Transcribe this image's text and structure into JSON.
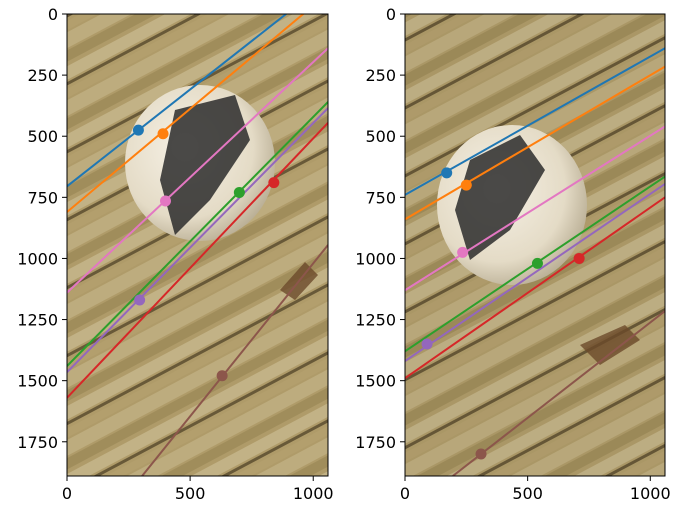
{
  "chart_data": [
    {
      "type": "scatter",
      "panel": "left",
      "background": "photograph of a soccer ball resting on wooden deck boards",
      "xlim": [
        0,
        1060
      ],
      "ylim": [
        1890,
        0
      ],
      "x_ticks": [
        0,
        500,
        1000
      ],
      "y_ticks": [
        0,
        250,
        500,
        750,
        1000,
        1250,
        1500,
        1750
      ],
      "grid": false,
      "lines": [
        {
          "color": "#1f77b4",
          "point": [
            290,
            475
          ],
          "p1": [
            0,
            705
          ],
          "p2": [
            1060,
            -135
          ]
        },
        {
          "color": "#ff7f0e",
          "point": [
            390,
            490
          ],
          "p1": [
            0,
            810
          ],
          "p2": [
            1060,
            -85
          ]
        },
        {
          "color": "#2ca02c",
          "point": [
            700,
            730
          ],
          "p1": [
            0,
            1440
          ],
          "p2": [
            1060,
            360
          ]
        },
        {
          "color": "#d62728",
          "point": [
            840,
            690
          ],
          "p1": [
            0,
            1570
          ],
          "p2": [
            1060,
            445
          ]
        },
        {
          "color": "#9467bd",
          "point": [
            295,
            1170
          ],
          "p1": [
            0,
            1465
          ],
          "p2": [
            1060,
            385
          ]
        },
        {
          "color": "#8c564b",
          "point": [
            630,
            1480
          ],
          "p1": [
            305,
            1890
          ],
          "p2": [
            1060,
            945
          ]
        },
        {
          "color": "#e377c2",
          "point": [
            400,
            765
          ],
          "p1": [
            0,
            1140
          ],
          "p2": [
            1060,
            140
          ]
        }
      ]
    },
    {
      "type": "scatter",
      "panel": "right",
      "background": "photograph of the same soccer ball on wooden deck boards from a second viewpoint",
      "xlim": [
        0,
        1060
      ],
      "ylim": [
        1890,
        0
      ],
      "x_ticks": [
        0,
        500,
        1000
      ],
      "y_ticks": [
        0,
        250,
        500,
        750,
        1000,
        1250,
        1500,
        1750
      ],
      "grid": false,
      "lines": [
        {
          "color": "#1f77b4",
          "point": [
            170,
            650
          ],
          "p1": [
            0,
            740
          ],
          "p2": [
            1060,
            140
          ]
        },
        {
          "color": "#ff7f0e",
          "point": [
            250,
            700
          ],
          "p1": [
            0,
            840
          ],
          "p2": [
            1060,
            215
          ]
        },
        {
          "color": "#2ca02c",
          "point": [
            540,
            1020
          ],
          "p1": [
            0,
            1380
          ],
          "p2": [
            1060,
            665
          ]
        },
        {
          "color": "#d62728",
          "point": [
            710,
            1000
          ],
          "p1": [
            0,
            1490
          ],
          "p2": [
            1060,
            750
          ]
        },
        {
          "color": "#9467bd",
          "point": [
            90,
            1350
          ],
          "p1": [
            0,
            1420
          ],
          "p2": [
            1060,
            695
          ]
        },
        {
          "color": "#8c564b",
          "point": [
            310,
            1800
          ],
          "p1": [
            195,
            1890
          ],
          "p2": [
            1060,
            1215
          ]
        },
        {
          "color": "#e377c2",
          "point": [
            235,
            975
          ],
          "p1": [
            0,
            1130
          ],
          "p2": [
            1060,
            460
          ]
        }
      ]
    }
  ]
}
